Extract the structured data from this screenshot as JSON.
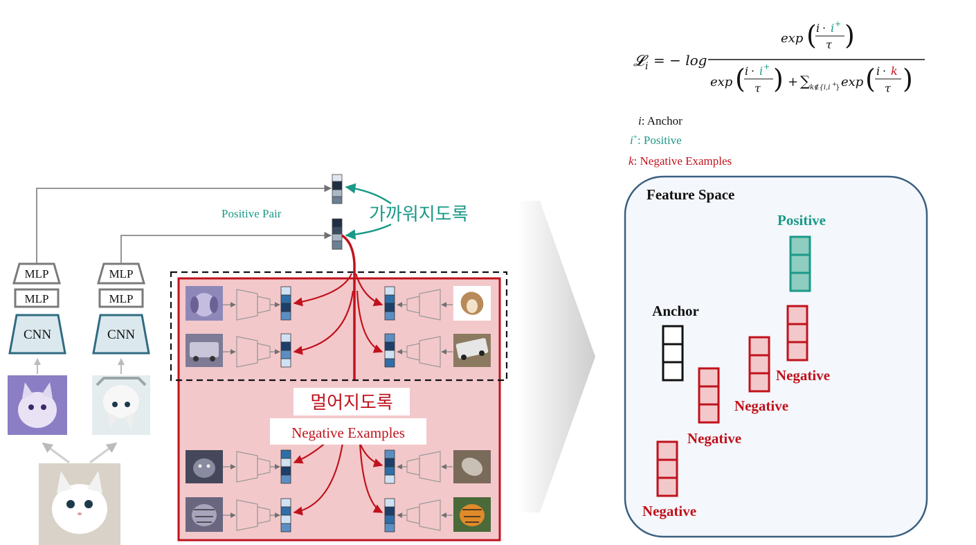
{
  "left": {
    "mlp_label": "MLP",
    "cnn_label": "CNN",
    "positive_pair": "Positive Pair",
    "pull_closer": "가까워지도록",
    "push_apart": "멀어지도록",
    "negative_examples": "Negative Examples",
    "images": [
      {
        "name": "original-cat-image",
        "icon": "cat"
      },
      {
        "name": "augmented-cat-purple",
        "icon": "cat"
      },
      {
        "name": "augmented-cat-flipped",
        "icon": "cat"
      },
      {
        "name": "dog-purple",
        "icon": "dog"
      },
      {
        "name": "car-purple",
        "icon": "car"
      },
      {
        "name": "dog-rotated",
        "icon": "dog"
      },
      {
        "name": "car-rotated",
        "icon": "car"
      },
      {
        "name": "cat-dark",
        "icon": "cat"
      },
      {
        "name": "tiger-purple",
        "icon": "tiger"
      },
      {
        "name": "cat-rotated",
        "icon": "cat"
      },
      {
        "name": "tiger-color",
        "icon": "tiger"
      }
    ]
  },
  "formula": {
    "lhs": "𝓛",
    "lhs_sub": "i",
    "eq": "= − log",
    "exp": "exp",
    "i": "i",
    "dot": "·",
    "iplus": "i",
    "plus_sup": "+",
    "tau": "τ",
    "plus": "+",
    "sum": "∑",
    "sum_sub": "k∉{i,i",
    "sum_sub_end": "}",
    "k": "k"
  },
  "legend": {
    "anchor_sym": "i",
    "anchor_text": ": Anchor",
    "positive_sym": "i",
    "positive_sup": "+",
    "positive_text": ": Positive",
    "negative_sym": "k",
    "negative_text": ": Negative Examples"
  },
  "feature_space": {
    "title": "Feature Space",
    "positive": "Positive",
    "anchor": "Anchor",
    "negative": "Negative"
  },
  "colors": {
    "teal": "#1a9988",
    "red": "#c0121c",
    "pink_fill": "#f3c8cb",
    "mlp_gray": "#7a7a7a",
    "cnn_blue": "#2f6b82",
    "feature_border": "#3a5f80",
    "feature_fill": "#f4f7fb"
  }
}
